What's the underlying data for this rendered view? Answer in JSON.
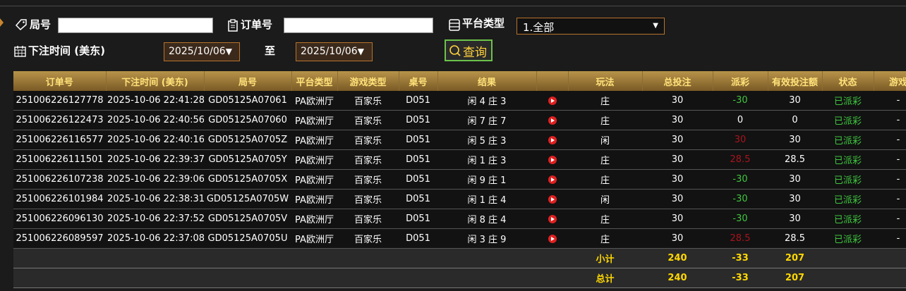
{
  "filters": {
    "round_label": "局号",
    "order_label": "订单号",
    "platform_label": "平台类型",
    "platform_value": "1.全部",
    "time_label": "下注时间 (美东)",
    "date_from": "2025/10/06",
    "to": "至",
    "date_to": "2025/10/06",
    "query_button": "查询"
  },
  "table": {
    "headers": [
      "订单号",
      "下注时间 (美东)",
      "局号",
      "平台类型",
      "游戏类型",
      "桌号",
      "结果",
      "玩法",
      "总投注",
      "派彩",
      "有效投注额",
      "状态",
      "游戏"
    ],
    "rows": [
      [
        "251006226127778",
        "2025-10-06 22:41:28",
        "GD05125A07061",
        "PA欧洲厅",
        "百家乐",
        "D051",
        "闲 4 庄 3",
        "庄",
        30,
        -30,
        30,
        "已派彩",
        "-"
      ],
      [
        "251006226122473",
        "2025-10-06 22:40:56",
        "GD05125A07060",
        "PA欧洲厅",
        "百家乐",
        "D051",
        "闲 7 庄 7",
        "庄",
        30,
        0,
        0,
        "已派彩",
        "-"
      ],
      [
        "251006226116577",
        "2025-10-06 22:40:16",
        "GD05125A0705Z",
        "PA欧洲厅",
        "百家乐",
        "D051",
        "闲 5 庄 3",
        "闲",
        30,
        30,
        30,
        "已派彩",
        "-"
      ],
      [
        "251006226111501",
        "2025-10-06 22:39:37",
        "GD05125A0705Y",
        "PA欧洲厅",
        "百家乐",
        "D051",
        "闲 1 庄 3",
        "庄",
        30,
        28.5,
        28.5,
        "已派彩",
        "-"
      ],
      [
        "251006226107238",
        "2025-10-06 22:39:06",
        "GD05125A0705X",
        "PA欧洲厅",
        "百家乐",
        "D051",
        "闲 9 庄 1",
        "庄",
        30,
        -30,
        30,
        "已派彩",
        "-"
      ],
      [
        "251006226101984",
        "2025-10-06 22:38:31",
        "GD05125A0705W",
        "PA欧洲厅",
        "百家乐",
        "D051",
        "闲 1 庄 4",
        "闲",
        30,
        -30,
        30,
        "已派彩",
        "-"
      ],
      [
        "251006226096130",
        "2025-10-06 22:37:52",
        "GD05125A0705V",
        "PA欧洲厅",
        "百家乐",
        "D051",
        "闲 8 庄 4",
        "庄",
        30,
        -30,
        30,
        "已派彩",
        "-"
      ],
      [
        "251006226089597",
        "2025-10-06 22:37:08",
        "GD05125A0705U",
        "PA欧洲厅",
        "百家乐",
        "D051",
        "闲 3 庄 9",
        "庄",
        30,
        28.5,
        28.5,
        "已派彩",
        "-"
      ]
    ],
    "subtotal": {
      "label": "小计",
      "bet": 240,
      "payout": -33,
      "valid": 207
    },
    "total": {
      "label": "总计",
      "bet": 240,
      "payout": -33,
      "valid": 207
    }
  }
}
